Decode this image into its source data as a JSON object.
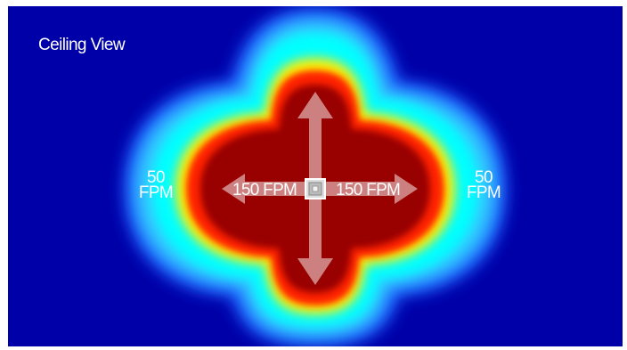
{
  "diagram": {
    "title": "Ceiling View",
    "outer_left": {
      "value": "50",
      "unit": "FPM"
    },
    "outer_right": {
      "value": "50",
      "unit": "FPM"
    },
    "inner_left": "150 FPM",
    "inner_right": "150 FPM"
  },
  "colors": {
    "background": "#0000a8",
    "core": "#990000",
    "red": "#ff1a00",
    "yellow": "#ffff00",
    "cyan": "#00ffff",
    "blue": "#0044ff",
    "arrow": "rgba(255,255,255,0.55)"
  },
  "icons": [
    "ceiling-diffuser-icon",
    "throw-arrow-up-icon",
    "throw-arrow-down-icon",
    "throw-arrow-left-icon",
    "throw-arrow-right-icon"
  ]
}
